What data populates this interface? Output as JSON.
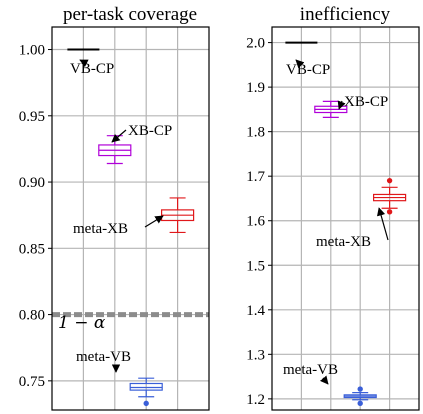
{
  "colors": {
    "vb_cp": "#000000",
    "xb_cp": "#b000d8",
    "meta_xb": "#e0181b",
    "meta_vb": "#3a5fd8",
    "target_line": "#8c8c8c",
    "grid": "#b5b5b5"
  },
  "chart_data": [
    {
      "type": "box",
      "title": "per-task coverage",
      "yticks": [
        "0.75",
        "0.80",
        "0.85",
        "0.90",
        "0.95",
        "1.00"
      ],
      "ylim": [
        0.728,
        1.017
      ],
      "xlim": [
        0,
        5
      ],
      "grid": true,
      "reference_line": {
        "value": 0.8,
        "label": "1 − α",
        "style": "dashed"
      },
      "series": [
        {
          "name": "VB-CP",
          "color": "#000000",
          "x": 1.0,
          "median": 1.0,
          "q1": 1.0,
          "q3": 1.0,
          "whisker_low": 1.0,
          "whisker_high": 1.0,
          "outliers": []
        },
        {
          "name": "XB-CP",
          "color": "#b000d8",
          "x": 2.0,
          "median": 0.924,
          "q1": 0.92,
          "q3": 0.928,
          "whisker_low": 0.914,
          "whisker_high": 0.935,
          "outliers": []
        },
        {
          "name": "meta-XB",
          "color": "#e0181b",
          "x": 4.0,
          "median": 0.875,
          "q1": 0.871,
          "q3": 0.879,
          "whisker_low": 0.862,
          "whisker_high": 0.888,
          "outliers": []
        },
        {
          "name": "meta-VB",
          "color": "#3a5fd8",
          "x": 3.0,
          "median": 0.745,
          "q1": 0.743,
          "q3": 0.748,
          "whisker_low": 0.738,
          "whisker_high": 0.752,
          "outliers": [
            0.733
          ]
        }
      ]
    },
    {
      "type": "box",
      "title": "inefficiency",
      "yticks": [
        "1.2",
        "1.3",
        "1.4",
        "1.5",
        "1.6",
        "1.7",
        "1.8",
        "1.9",
        "2.0"
      ],
      "ylim": [
        1.175,
        2.035
      ],
      "xlim": [
        0,
        5
      ],
      "grid": true,
      "series": [
        {
          "name": "VB-CP",
          "color": "#000000",
          "x": 1.0,
          "median": 2.0,
          "q1": 2.0,
          "q3": 2.0,
          "whisker_low": 2.0,
          "whisker_high": 2.0,
          "outliers": []
        },
        {
          "name": "XB-CP",
          "color": "#b000d8",
          "x": 2.0,
          "median": 1.85,
          "q1": 1.843,
          "q3": 1.857,
          "whisker_low": 1.832,
          "whisker_high": 1.868,
          "outliers": []
        },
        {
          "name": "meta-XB",
          "color": "#e0181b",
          "x": 4.0,
          "median": 1.652,
          "q1": 1.645,
          "q3": 1.659,
          "whisker_low": 1.628,
          "whisker_high": 1.675,
          "outliers": [
            1.62,
            1.69
          ]
        },
        {
          "name": "meta-VB",
          "color": "#3a5fd8",
          "x": 3.0,
          "median": 1.206,
          "q1": 1.203,
          "q3": 1.209,
          "whisker_low": 1.198,
          "whisker_high": 1.214,
          "outliers": [
            1.19,
            1.222
          ]
        }
      ]
    }
  ]
}
